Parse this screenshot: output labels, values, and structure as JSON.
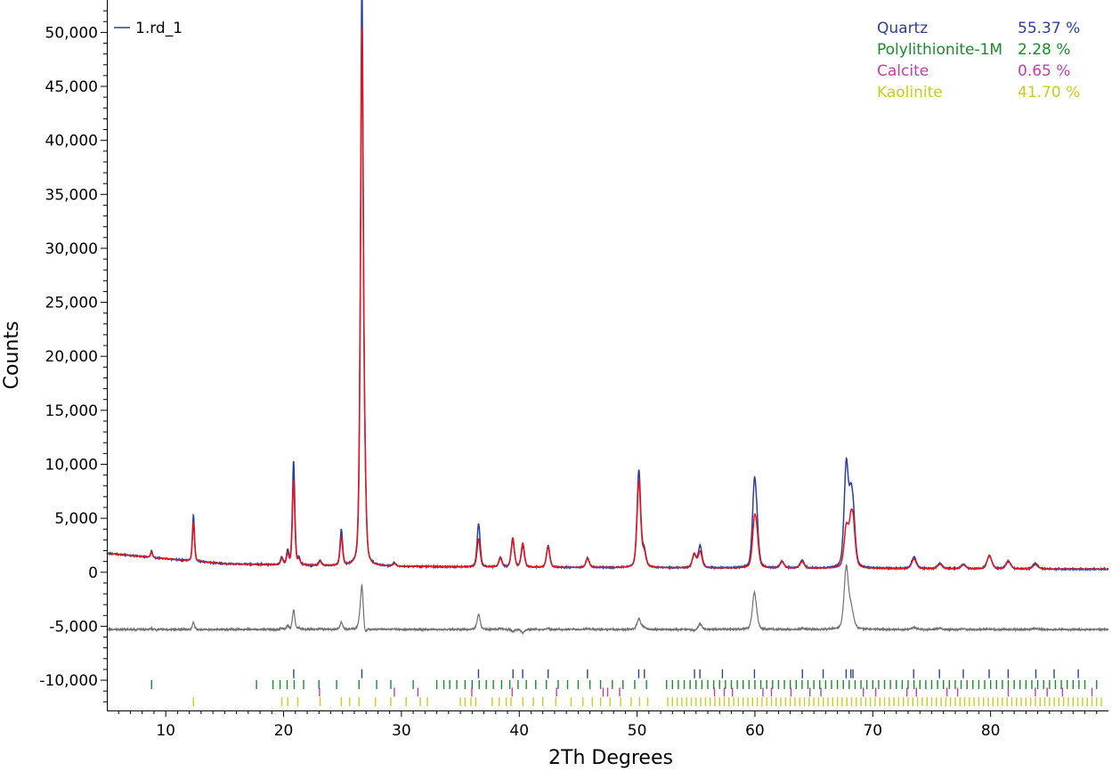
{
  "chart_data": {
    "type": "line",
    "title": "",
    "xlabel": "2Th Degrees",
    "ylabel": "Counts",
    "xlim": [
      5,
      90
    ],
    "ylim": [
      -12800,
      53000
    ],
    "x_ticks": [
      10,
      20,
      30,
      40,
      50,
      60,
      70,
      80
    ],
    "x_tick_labels": [
      "10",
      "20",
      "30",
      "40",
      "50",
      "60",
      "70",
      "80"
    ],
    "y_ticks": [
      -10000,
      -5000,
      0,
      5000,
      10000,
      15000,
      20000,
      25000,
      30000,
      35000,
      40000,
      45000,
      50000
    ],
    "y_tick_labels": [
      "-10,000",
      "-5,000",
      "0",
      "5,000",
      "10,000",
      "15,000",
      "20,000",
      "25,000",
      "30,000",
      "35,000",
      "40,000",
      "45,000",
      "50,000"
    ],
    "grid": false,
    "legend": {
      "position": "top-left",
      "entries": [
        {
          "label": "1.rd_1",
          "color": "#2b3fa0"
        }
      ]
    },
    "series": [
      {
        "name": "1.rd_1",
        "role": "observed",
        "color": "#2b3fa0"
      },
      {
        "role": "calculated",
        "color": "#e8141a"
      },
      {
        "role": "difference",
        "color": "#707070",
        "offset": -5300
      }
    ],
    "background": [
      [
        5,
        1750
      ],
      [
        10,
        1250
      ],
      [
        15,
        780
      ],
      [
        25,
        560
      ],
      [
        40,
        460
      ],
      [
        60,
        380
      ],
      [
        90,
        280
      ]
    ],
    "peaks": [
      {
        "x": 8.8,
        "obs": 600,
        "calc": 500
      },
      {
        "x": 12.35,
        "obs": 4250,
        "calc": 3600
      },
      {
        "x": 19.85,
        "obs": 700,
        "calc": 600
      },
      {
        "x": 20.35,
        "obs": 1300,
        "calc": 1000
      },
      {
        "x": 20.85,
        "obs": 9600,
        "calc": 7800
      },
      {
        "x": 21.3,
        "obs": 600,
        "calc": 500
      },
      {
        "x": 23.1,
        "obs": 500,
        "calc": 400
      },
      {
        "x": 24.9,
        "obs": 3300,
        "calc": 2600
      },
      {
        "x": 26.45,
        "obs": 3500,
        "calc": 2800
      },
      {
        "x": 26.65,
        "obs": 52500,
        "calc": 48500
      },
      {
        "x": 26.9,
        "obs": 6000,
        "calc": 6500
      },
      {
        "x": 29.4,
        "obs": 300,
        "calc": 250
      },
      {
        "x": 36.55,
        "obs": 4000,
        "calc": 2600
      },
      {
        "x": 38.4,
        "obs": 900,
        "calc": 800
      },
      {
        "x": 39.45,
        "obs": 2500,
        "calc": 2700
      },
      {
        "x": 40.3,
        "obs": 1900,
        "calc": 2200
      },
      {
        "x": 42.45,
        "obs": 2000,
        "calc": 1900
      },
      {
        "x": 45.8,
        "obs": 900,
        "calc": 800
      },
      {
        "x": 50.15,
        "obs": 9000,
        "calc": 8000
      },
      {
        "x": 50.6,
        "obs": 1500,
        "calc": 1300
      },
      {
        "x": 54.85,
        "obs": 1200,
        "calc": 1300
      },
      {
        "x": 55.35,
        "obs": 2000,
        "calc": 1500
      },
      {
        "x": 59.95,
        "obs": 7000,
        "calc": 3700
      },
      {
        "x": 60.15,
        "obs": 2600,
        "calc": 2300
      },
      {
        "x": 62.3,
        "obs": 600,
        "calc": 600
      },
      {
        "x": 64.0,
        "obs": 700,
        "calc": 600
      },
      {
        "x": 67.75,
        "obs": 9300,
        "calc": 3600
      },
      {
        "x": 68.15,
        "obs": 4800,
        "calc": 3200
      },
      {
        "x": 68.35,
        "obs": 3300,
        "calc": 3000
      },
      {
        "x": 73.5,
        "obs": 1100,
        "calc": 900
      },
      {
        "x": 75.7,
        "obs": 500,
        "calc": 400
      },
      {
        "x": 77.7,
        "obs": 400,
        "calc": 350
      },
      {
        "x": 79.9,
        "obs": 1200,
        "calc": 1200
      },
      {
        "x": 81.5,
        "obs": 700,
        "calc": 700
      },
      {
        "x": 83.8,
        "obs": 500,
        "calc": 400
      }
    ],
    "phases": [
      {
        "name": "Quartz",
        "percent": "55.37 %",
        "color": "#2b3fa0",
        "tick_y": -9400,
        "positions": [
          20.86,
          26.64,
          36.54,
          39.47,
          40.29,
          42.45,
          45.79,
          50.14,
          50.62,
          54.87,
          55.33,
          57.24,
          59.96,
          64.03,
          65.79,
          67.74,
          68.14,
          68.32,
          73.47,
          75.66,
          77.68,
          79.88,
          81.49,
          83.84,
          85.39,
          87.44
        ]
      },
      {
        "name": "Polylithionite-1M",
        "percent": "2.28 %",
        "color": "#1a8a2a",
        "tick_y": -10400,
        "positions": [
          8.8,
          17.7,
          19.1,
          19.7,
          20.3,
          20.9,
          21.7,
          23.0,
          24.5,
          26.4,
          27.9,
          29.1,
          31.0,
          33.0,
          33.6,
          34.1,
          34.7,
          35.4,
          36.0,
          36.6,
          37.2,
          37.8,
          38.5,
          39.2,
          39.9,
          40.6,
          41.4,
          42.3,
          43.3,
          44.1,
          45.0,
          46.0,
          46.9,
          47.9,
          48.8,
          49.8,
          50.8,
          52.5,
          53.0,
          53.5,
          54.0,
          54.5,
          55.0,
          55.5,
          56.0,
          56.5,
          57.0,
          57.5,
          58.0,
          58.5,
          59.0,
          59.5,
          60.0,
          60.5,
          61.0,
          61.5,
          62.0,
          62.5,
          63.0,
          63.5,
          64.0,
          64.5,
          65.0,
          65.5,
          66.0,
          66.5,
          67.0,
          67.5,
          68.0,
          68.5,
          69.0,
          69.5,
          70.0,
          70.5,
          71.0,
          71.5,
          72.0,
          72.5,
          73.0,
          73.5,
          74.0,
          74.5,
          75.0,
          75.5,
          76.0,
          76.5,
          77.0,
          77.5,
          78.0,
          78.5,
          79.0,
          79.5,
          80.0,
          80.5,
          81.0,
          81.5,
          82.0,
          82.5,
          83.0,
          83.5,
          84.0,
          84.5,
          85.0,
          85.5,
          86.0,
          86.5,
          87.0,
          87.5,
          88.0,
          89.0
        ]
      },
      {
        "name": "Calcite",
        "percent": "0.65 %",
        "color": "#c23fa6",
        "tick_y": -11100,
        "positions": [
          23.05,
          29.4,
          31.4,
          35.97,
          39.4,
          43.16,
          47.12,
          47.5,
          48.52,
          56.57,
          57.4,
          58.09,
          60.68,
          61.4,
          63.06,
          64.67,
          65.6,
          69.2,
          70.25,
          72.9,
          73.7,
          76.3,
          77.2,
          81.5,
          83.8,
          84.8,
          86.1,
          88.6
        ]
      },
      {
        "name": "Kaolinite",
        "percent": "41.70 %",
        "color": "#cccc1a",
        "tick_y": -12000,
        "positions": [
          12.35,
          19.85,
          20.35,
          21.2,
          23.1,
          24.9,
          25.6,
          26.4,
          27.8,
          29.1,
          30.4,
          31.6,
          32.2,
          35.0,
          35.4,
          35.9,
          36.3,
          37.7,
          38.3,
          38.9,
          39.3,
          40.3,
          41.2,
          42.0,
          43.1,
          44.4,
          45.4,
          46.2,
          46.9,
          47.7,
          48.6,
          49.5,
          50.2,
          50.9,
          52.6,
          53.0,
          53.4,
          53.8,
          54.2,
          54.6,
          55.0,
          55.4,
          55.8,
          56.2,
          56.6,
          57.0,
          57.4,
          57.8,
          58.2,
          58.6,
          59.0,
          59.4,
          59.8,
          60.2,
          60.6,
          61.0,
          61.4,
          61.8,
          62.2,
          62.6,
          63.0,
          63.4,
          63.8,
          64.2,
          64.6,
          65.0,
          65.4,
          65.8,
          66.2,
          66.6,
          67.0,
          67.4,
          67.8,
          68.2,
          68.6,
          69.0,
          69.4,
          69.8,
          70.2,
          70.6,
          71.0,
          71.4,
          71.8,
          72.2,
          72.6,
          73.0,
          73.4,
          73.8,
          74.2,
          74.6,
          75.0,
          75.4,
          75.8,
          76.2,
          76.6,
          77.0,
          77.4,
          77.8,
          78.2,
          78.6,
          79.0,
          79.4,
          79.8,
          80.2,
          80.6,
          81.0,
          81.4,
          81.8,
          82.2,
          82.6,
          83.0,
          83.4,
          83.8,
          84.2,
          84.6,
          85.0,
          85.4,
          85.8,
          86.2,
          86.6,
          87.0,
          87.4,
          87.8,
          88.2,
          88.6,
          89.0,
          89.4
        ]
      }
    ]
  }
}
